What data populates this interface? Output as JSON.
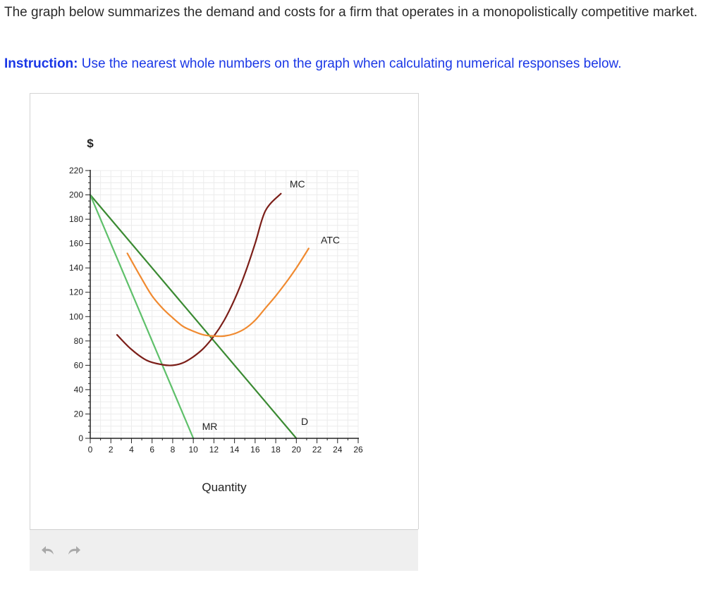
{
  "question": {
    "text": "The graph below summarizes the demand and costs for a firm that operates in a monopolistically competitive market.",
    "instruction_label": "Instruction:",
    "instruction_text": " Use the nearest whole numbers on the graph when calculating numerical responses below."
  },
  "toolbar": {
    "undo_icon": "undo-arrow",
    "redo_icon": "redo-arrow"
  },
  "colors": {
    "demand": "#3a8a32",
    "mr": "#5ec06a",
    "mc": "#7b1e18",
    "atc": "#f08a30",
    "axis": "#222222",
    "grid": "#ececec"
  },
  "chart_data": {
    "type": "line",
    "ylabel": "$",
    "xlabel": "Quantity",
    "xlim": [
      0,
      26
    ],
    "ylim": [
      0,
      220
    ],
    "x_ticks": [
      0,
      2,
      4,
      6,
      8,
      10,
      12,
      14,
      16,
      18,
      20,
      22,
      24,
      26
    ],
    "y_ticks": [
      0,
      20,
      40,
      60,
      80,
      100,
      120,
      140,
      160,
      180,
      200,
      220
    ],
    "grid": true,
    "series": [
      {
        "name": "D",
        "color": "#3a8a32",
        "points": [
          [
            0,
            200
          ],
          [
            20,
            0
          ]
        ]
      },
      {
        "name": "MR",
        "color": "#5ec06a",
        "points": [
          [
            0,
            200
          ],
          [
            10,
            0
          ]
        ]
      },
      {
        "name": "MC",
        "color": "#7b1e18",
        "points": [
          [
            2.6,
            85
          ],
          [
            4,
            73
          ],
          [
            5.5,
            64
          ],
          [
            7,
            60.5
          ],
          [
            8,
            60
          ],
          [
            9,
            62
          ],
          [
            10,
            67
          ],
          [
            11,
            74
          ],
          [
            12,
            84
          ],
          [
            13,
            97
          ],
          [
            14,
            114
          ],
          [
            15,
            135
          ],
          [
            16,
            160
          ],
          [
            17,
            187
          ],
          [
            18.5,
            201
          ]
        ]
      },
      {
        "name": "ATC",
        "color": "#f08a30",
        "points": [
          [
            3.6,
            152
          ],
          [
            5,
            131
          ],
          [
            6,
            117
          ],
          [
            7,
            107
          ],
          [
            8,
            99
          ],
          [
            9,
            92
          ],
          [
            10,
            88
          ],
          [
            11,
            85
          ],
          [
            12,
            84
          ],
          [
            13,
            84
          ],
          [
            14,
            86
          ],
          [
            15,
            90
          ],
          [
            16,
            97
          ],
          [
            17,
            107
          ],
          [
            18,
            117
          ],
          [
            19,
            128
          ],
          [
            20,
            140
          ],
          [
            21.2,
            156
          ]
        ]
      }
    ]
  }
}
